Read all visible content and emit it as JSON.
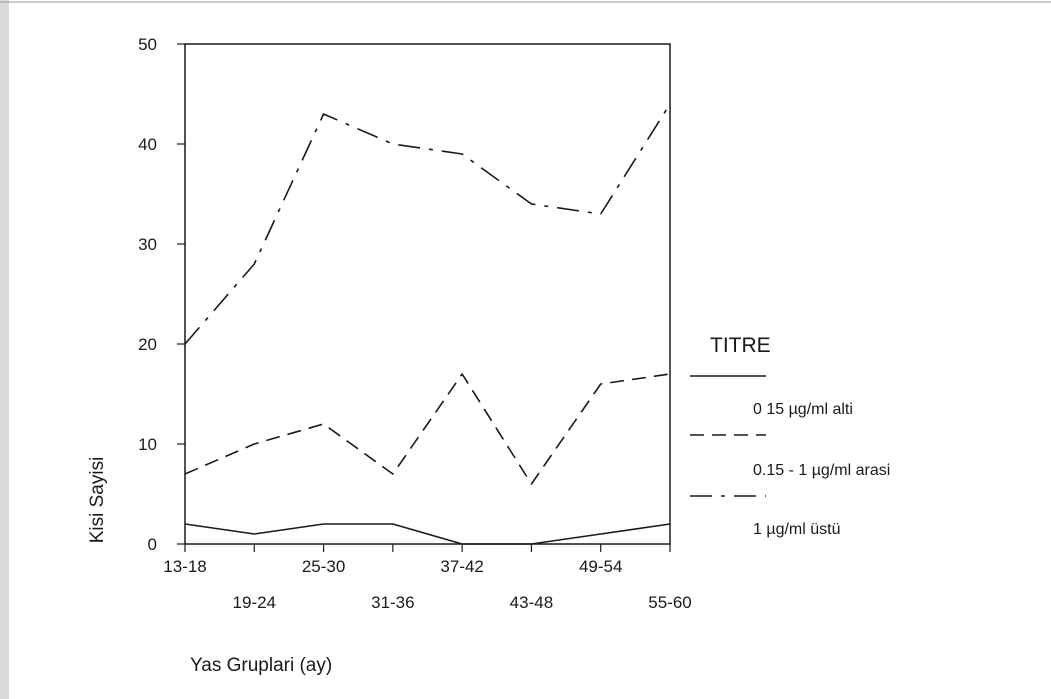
{
  "chart_data": {
    "type": "line",
    "xlabel": "Yas Gruplari (ay)",
    "ylabel": "Kisi Sayisi",
    "categories": [
      "13-18",
      "19-24",
      "25-30",
      "31-36",
      "37-42",
      "43-48",
      "49-54",
      "55-60"
    ],
    "ylim": [
      0,
      50
    ],
    "yticks": [
      0,
      10,
      20,
      30,
      40,
      50
    ],
    "grid": false,
    "legend": {
      "title": "TITRE",
      "placement": "right"
    },
    "series": [
      {
        "name": "0 15 µg/ml alti",
        "style": "solid",
        "values": [
          2,
          1,
          2,
          2,
          0,
          0,
          1,
          2
        ]
      },
      {
        "name": "0.15 - 1 µg/ml arasi",
        "style": "dashed",
        "values": [
          7,
          10,
          12,
          7,
          17,
          6,
          16,
          17
        ]
      },
      {
        "name": "1 µg/ml üstü",
        "style": "dashdot",
        "values": [
          20,
          28,
          43,
          40,
          39,
          34,
          33,
          44
        ]
      }
    ]
  },
  "colors": {
    "line": "#1a1a1a",
    "background": "#ffffff"
  }
}
